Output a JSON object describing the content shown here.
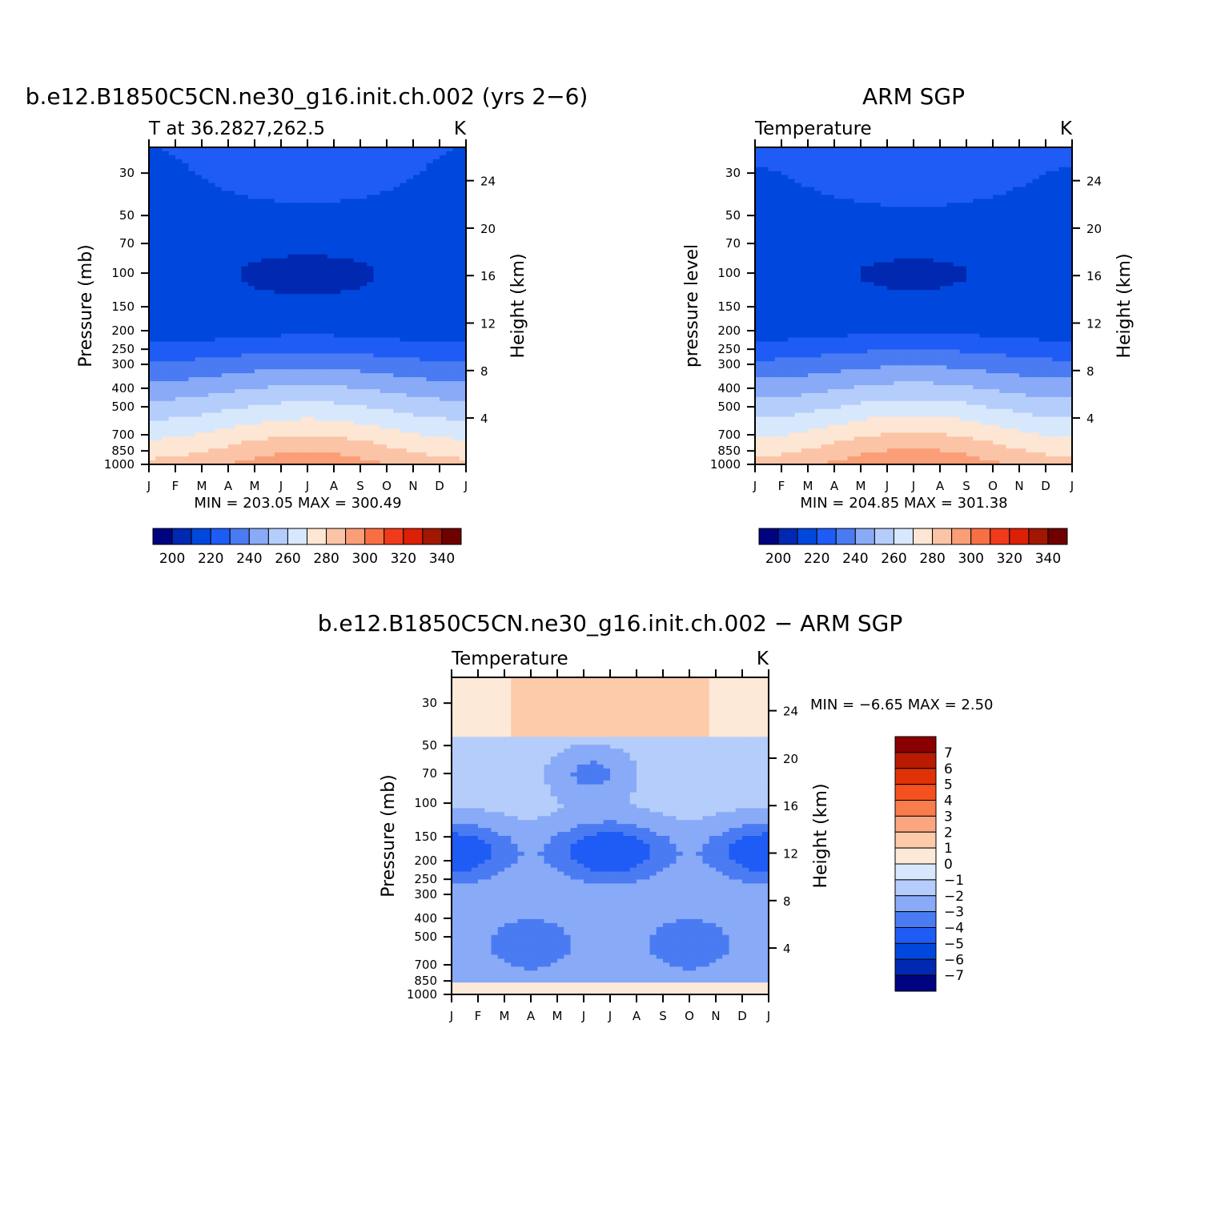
{
  "chart_data": [
    {
      "type": "heatmap",
      "title": "b.e12.B1850C5CN.ne30_g16.init.ch.002 (yrs 2−6)",
      "subtitle_left": "T at 36.2827,262.5",
      "subtitle_right": "K",
      "xlabel": "",
      "ylabel": "Pressure (mb)",
      "y2label": "Height (km)",
      "x": [
        "J",
        "F",
        "M",
        "A",
        "M",
        "J",
        "J",
        "A",
        "S",
        "O",
        "N",
        "D",
        "J"
      ],
      "y_pressure_ticks": [
        30,
        50,
        70,
        100,
        150,
        200,
        250,
        300,
        400,
        500,
        700,
        850,
        1000
      ],
      "y_height_ticks": [
        24,
        20,
        16,
        12,
        8,
        4
      ],
      "ylim": [
        1000,
        22
      ],
      "minmax_text": "MIN = 203.05 MAX = 300.49",
      "colorbar": {
        "levels": [
          190,
          200,
          210,
          220,
          230,
          240,
          250,
          260,
          270,
          280,
          290,
          300,
          310,
          320,
          330,
          340
        ],
        "labels": [
          "200",
          "220",
          "240",
          "260",
          "280",
          "300",
          "320",
          "340"
        ],
        "colors": [
          "#000380",
          "#0028b0",
          "#0048dd",
          "#1e5cf5",
          "#4a7bf2",
          "#88aaf7",
          "#b5cdfa",
          "#d7e8fd",
          "#fde6d3",
          "#fbc4a6",
          "#f99e77",
          "#f86f44",
          "#f03a1a",
          "#dc2006",
          "#a11702",
          "#6f0000"
        ]
      },
      "contour_levels": [
        200,
        210,
        220,
        230,
        240,
        250,
        260,
        270,
        280,
        290,
        300
      ],
      "value_range": [
        203.05,
        300.49
      ]
    },
    {
      "type": "heatmap",
      "title": "ARM SGP",
      "subtitle_left": "Temperature",
      "subtitle_right": "K",
      "xlabel": "",
      "ylabel": "pressure level",
      "y2label": "Height (km)",
      "x": [
        "J",
        "F",
        "M",
        "A",
        "M",
        "J",
        "J",
        "A",
        "S",
        "O",
        "N",
        "D",
        "J"
      ],
      "y_pressure_ticks": [
        30,
        50,
        70,
        100,
        150,
        200,
        250,
        300,
        400,
        500,
        700,
        850,
        1000
      ],
      "y_height_ticks": [
        24,
        20,
        16,
        12,
        8,
        4
      ],
      "ylim": [
        1000,
        22
      ],
      "minmax_text": "MIN = 204.85 MAX = 301.38",
      "colorbar": {
        "levels": [
          190,
          200,
          210,
          220,
          230,
          240,
          250,
          260,
          270,
          280,
          290,
          300,
          310,
          320,
          330,
          340
        ],
        "labels": [
          "200",
          "220",
          "240",
          "260",
          "280",
          "300",
          "320",
          "340"
        ],
        "colors": [
          "#000380",
          "#0028b0",
          "#0048dd",
          "#1e5cf5",
          "#4a7bf2",
          "#88aaf7",
          "#b5cdfa",
          "#d7e8fd",
          "#fde6d3",
          "#fbc4a6",
          "#f99e77",
          "#f86f44",
          "#f03a1a",
          "#dc2006",
          "#a11702",
          "#6f0000"
        ]
      },
      "contour_levels": [
        200,
        210,
        220,
        230,
        240,
        250,
        260,
        270,
        280,
        290,
        300
      ],
      "value_range": [
        204.85,
        301.38
      ]
    },
    {
      "type": "heatmap",
      "title": "b.e12.B1850C5CN.ne30_g16.init.ch.002 − ARM SGP",
      "subtitle_left": "Temperature",
      "subtitle_right": "K",
      "xlabel": "",
      "ylabel": "Pressure (mb)",
      "y2label": "Height (km)",
      "x": [
        "J",
        "F",
        "M",
        "A",
        "M",
        "J",
        "J",
        "A",
        "S",
        "O",
        "N",
        "D",
        "J"
      ],
      "y_pressure_ticks": [
        30,
        50,
        70,
        100,
        150,
        200,
        250,
        300,
        400,
        500,
        700,
        850,
        1000
      ],
      "y_height_ticks": [
        24,
        20,
        16,
        12,
        8,
        4
      ],
      "ylim": [
        1000,
        22
      ],
      "minmax_text": "MIN = −6.65 MAX = 2.50",
      "colorbar": {
        "orientation": "vertical",
        "labels": [
          "7",
          "6",
          "5",
          "4",
          "3",
          "2",
          "1",
          "0",
          "−1",
          "−2",
          "−3",
          "−4",
          "−5",
          "−6",
          "−7"
        ],
        "colors": [
          "#8a0000",
          "#b81a02",
          "#e03206",
          "#f5501f",
          "#f87c4c",
          "#fba67f",
          "#fdcaaa",
          "#fde9d7",
          "#d7e8fd",
          "#b5cdfa",
          "#88aaf7",
          "#4a7bf2",
          "#1e5cf5",
          "#0048dd",
          "#0028b0",
          "#000380"
        ]
      },
      "value_range": [
        -6.65,
        2.5
      ]
    }
  ]
}
